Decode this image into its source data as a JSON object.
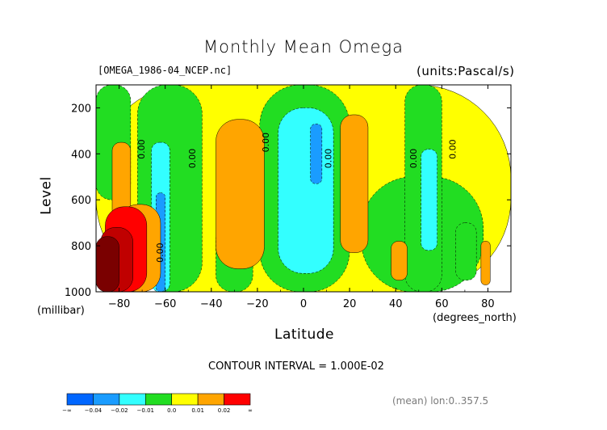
{
  "chart_data": {
    "type": "heatmap",
    "title": "Monthly Mean Omega",
    "file_label": "[OMEGA_1986-04_NCEP.nc]",
    "units_label": "(units:Pascal/s)",
    "xlabel": "Latitude",
    "xlabel_units": "(degrees_north)",
    "ylabel": "Level",
    "ylabel_units": "(millibar)",
    "xlim": [
      -90,
      90
    ],
    "ylim": [
      1000,
      100
    ],
    "x_ticks": [
      -80,
      -60,
      -40,
      -20,
      0,
      20,
      40,
      60,
      80
    ],
    "x_tick_labels": [
      "−80",
      "−60",
      "−40",
      "−20",
      "0",
      "20",
      "40",
      "60",
      "80"
    ],
    "y_ticks": [
      200,
      400,
      600,
      800,
      1000
    ],
    "y_tick_labels": [
      "200",
      "400",
      "600",
      "800",
      "1000"
    ],
    "contour_interval": "CONTOUR INTERVAL = 1.000E-02",
    "mean_note": "(mean) lon:0..357.5",
    "contour_labels": [
      {
        "text": "0.00",
        "lat": -69,
        "level": 380
      },
      {
        "text": "0.00",
        "lat": -47,
        "level": 420
      },
      {
        "text": "0.00",
        "lat": -15,
        "level": 350
      },
      {
        "text": "0.00",
        "lat": 12,
        "level": 420
      },
      {
        "text": "0.00",
        "lat": 49,
        "level": 420
      },
      {
        "text": "0.00",
        "lat": 66,
        "level": 380
      },
      {
        "text": "0.00",
        "lat": -61,
        "level": 830
      }
    ],
    "colorbar": {
      "bins": [
        {
          "color": "#0066ff"
        },
        {
          "color": "#1a9cff"
        },
        {
          "color": "#33ffff"
        },
        {
          "color": "#22dd22"
        },
        {
          "color": "#ffff00"
        },
        {
          "color": "#ffa500"
        },
        {
          "color": "#ff0000"
        }
      ],
      "labels": [
        "−∞",
        "−0.04",
        "−0.02",
        "−0.01",
        "0.0",
        "0.01",
        "0.02",
        "∞"
      ]
    },
    "fields": [
      {
        "value_range": "0.00 to 0.01",
        "color": "#ffff00",
        "lat_range": [
          -90,
          90
        ],
        "level_range": [
          100,
          1000
        ],
        "note": "background"
      },
      {
        "value_range": "-0.01 to 0.00",
        "color": "#22dd22",
        "lat_range": [
          -90,
          -75
        ],
        "level_range": [
          100,
          600
        ]
      },
      {
        "value_range": "-0.01 to 0.00",
        "color": "#22dd22",
        "lat_range": [
          -72,
          -44
        ],
        "level_range": [
          100,
          1000
        ]
      },
      {
        "value_range": "-0.01 to 0.00",
        "color": "#22dd22",
        "lat_range": [
          -38,
          -22
        ],
        "level_range": [
          700,
          1000
        ]
      },
      {
        "value_range": "-0.01 to 0.00",
        "color": "#22dd22",
        "lat_range": [
          -19,
          20
        ],
        "level_range": [
          100,
          1000
        ]
      },
      {
        "value_range": "-0.01 to 0.00",
        "color": "#22dd22",
        "lat_range": [
          25,
          78
        ],
        "level_range": [
          500,
          1000
        ]
      },
      {
        "value_range": "-0.01 to 0.00",
        "color": "#22dd22",
        "lat_range": [
          44,
          60
        ],
        "level_range": [
          100,
          1000
        ]
      },
      {
        "value_range": "-0.01 to 0.00",
        "color": "#22dd22",
        "lat_range": [
          66,
          75
        ],
        "level_range": [
          700,
          950
        ]
      },
      {
        "value_range": "-0.02 to -0.01",
        "color": "#33ffff",
        "lat_range": [
          -66,
          -58
        ],
        "level_range": [
          350,
          1000
        ]
      },
      {
        "value_range": "-0.02 to -0.01",
        "color": "#33ffff",
        "lat_range": [
          -11,
          13
        ],
        "level_range": [
          200,
          920
        ]
      },
      {
        "value_range": "-0.02 to -0.01",
        "color": "#33ffff",
        "lat_range": [
          51,
          58
        ],
        "level_range": [
          380,
          820
        ]
      },
      {
        "value_range": "-0.04 to -0.02",
        "color": "#1a9cff",
        "lat_range": [
          -64,
          -60
        ],
        "level_range": [
          570,
          1000
        ]
      },
      {
        "value_range": "-0.04 to -0.02",
        "color": "#1a9cff",
        "lat_range": [
          3,
          8
        ],
        "level_range": [
          270,
          530
        ]
      },
      {
        "value_range": "0.01 to 0.02",
        "color": "#ffa500",
        "lat_range": [
          -83,
          -75
        ],
        "level_range": [
          350,
          680
        ]
      },
      {
        "value_range": "0.01 to 0.02",
        "color": "#ffa500",
        "lat_range": [
          -38,
          -17
        ],
        "level_range": [
          250,
          900
        ]
      },
      {
        "value_range": "0.01 to 0.02",
        "color": "#ffa500",
        "lat_range": [
          16,
          28
        ],
        "level_range": [
          230,
          830
        ]
      },
      {
        "value_range": "0.01 to 0.02",
        "color": "#ffa500",
        "lat_range": [
          -80,
          -62
        ],
        "level_range": [
          620,
          1000
        ]
      },
      {
        "value_range": "0.01 to 0.02",
        "color": "#ffa500",
        "lat_range": [
          38,
          45
        ],
        "level_range": [
          780,
          950
        ]
      },
      {
        "value_range": "0.01 to 0.02",
        "color": "#ffa500",
        "lat_range": [
          77,
          81
        ],
        "level_range": [
          780,
          970
        ]
      },
      {
        "value_range": "0.02 and above",
        "color": "#ff0000",
        "lat_range": [
          -86,
          -68
        ],
        "level_range": [
          630,
          1000
        ]
      },
      {
        "value_range": "0.02 and above",
        "color": "#c00000",
        "lat_range": [
          -88,
          -74
        ],
        "level_range": [
          720,
          1000
        ]
      },
      {
        "value_range": "0.02 and above",
        "color": "#7a0000",
        "lat_range": [
          -90,
          -80
        ],
        "level_range": [
          760,
          1000
        ]
      }
    ]
  }
}
